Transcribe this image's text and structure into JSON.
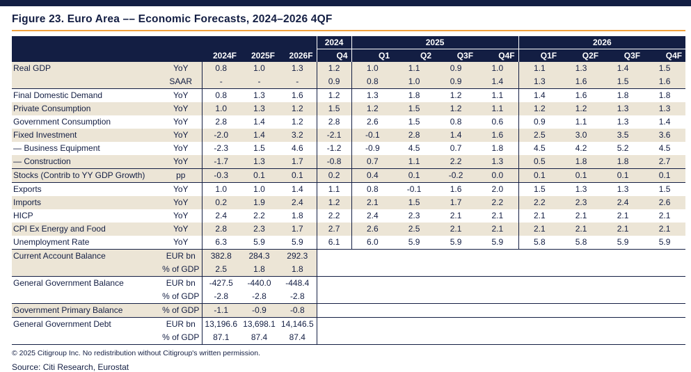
{
  "page": {
    "title": "Figure 23. Euro Area –– Economic Forecasts, 2024–2026 4QF",
    "copyright": "© 2025 Citigroup Inc. No redistribution without Citigroup's written permission.",
    "source": "Source: Citi Research, Eurostat"
  },
  "colors": {
    "navy": "#131e43",
    "beige": "#ece5d6",
    "accent_orange": "#f0a13c"
  },
  "table": {
    "year_groups": [
      {
        "label": "2024",
        "span": 1
      },
      {
        "label": "2025",
        "span": 4
      },
      {
        "label": "2026",
        "span": 4
      }
    ],
    "annual_headers": [
      "2024F",
      "2025F",
      "2026F"
    ],
    "quarter_headers": [
      "Q4",
      "Q1",
      "Q2",
      "Q3F",
      "Q4F",
      "Q1F",
      "Q2F",
      "Q3F",
      "Q4F"
    ],
    "rows": [
      {
        "label": "Real GDP",
        "unit": "YoY",
        "annual": [
          "0.8",
          "1.0",
          "1.3"
        ],
        "quarters": [
          "1.2",
          "1.0",
          "1.1",
          "0.9",
          "1.0",
          "1.1",
          "1.3",
          "1.4",
          "1.5"
        ],
        "shade": "beige",
        "rule": false
      },
      {
        "label": "",
        "unit": "SAAR",
        "annual": [
          "-",
          "-",
          "-"
        ],
        "quarters": [
          "0.9",
          "0.8",
          "1.0",
          "0.9",
          "1.4",
          "1.3",
          "1.6",
          "1.5",
          "1.6"
        ],
        "shade": "beige",
        "rule": true
      },
      {
        "label": "Final Domestic Demand",
        "unit": "YoY",
        "annual": [
          "0.8",
          "1.3",
          "1.6"
        ],
        "quarters": [
          "1.2",
          "1.3",
          "1.8",
          "1.2",
          "1.1",
          "1.4",
          "1.6",
          "1.8",
          "1.8"
        ],
        "shade": "white",
        "rule": false
      },
      {
        "label": "Private Consumption",
        "unit": "YoY",
        "annual": [
          "1.0",
          "1.3",
          "1.2"
        ],
        "quarters": [
          "1.5",
          "1.2",
          "1.5",
          "1.2",
          "1.1",
          "1.2",
          "1.2",
          "1.3",
          "1.3"
        ],
        "shade": "beige",
        "rule": false
      },
      {
        "label": "Government Consumption",
        "unit": "YoY",
        "annual": [
          "2.8",
          "1.4",
          "1.2"
        ],
        "quarters": [
          "2.8",
          "2.6",
          "1.5",
          "0.8",
          "0.6",
          "0.9",
          "1.1",
          "1.3",
          "1.4"
        ],
        "shade": "white",
        "rule": false
      },
      {
        "label": "Fixed Investment",
        "unit": "YoY",
        "annual": [
          "-2.0",
          "1.4",
          "3.2"
        ],
        "quarters": [
          "-2.1",
          "-0.1",
          "2.8",
          "1.4",
          "1.6",
          "2.5",
          "3.0",
          "3.5",
          "3.6"
        ],
        "shade": "beige",
        "rule": false
      },
      {
        "label": "— Business Equipment",
        "unit": "YoY",
        "annual": [
          "-2.3",
          "1.5",
          "4.6"
        ],
        "quarters": [
          "-1.2",
          "-0.9",
          "4.5",
          "0.7",
          "1.8",
          "4.5",
          "4.2",
          "5.2",
          "4.5"
        ],
        "shade": "white",
        "rule": false
      },
      {
        "label": "— Construction",
        "unit": "YoY",
        "annual": [
          "-1.7",
          "1.3",
          "1.7"
        ],
        "quarters": [
          "-0.8",
          "0.7",
          "1.1",
          "2.2",
          "1.3",
          "0.5",
          "1.8",
          "1.8",
          "2.7"
        ],
        "shade": "beige",
        "rule": true
      },
      {
        "label": "Stocks (Contrib to YY GDP Growth)",
        "unit": "pp",
        "annual": [
          "-0.3",
          "0.1",
          "0.1"
        ],
        "quarters": [
          "0.2",
          "0.4",
          "0.1",
          "-0.2",
          "0.0",
          "0.1",
          "0.1",
          "0.1",
          "0.1"
        ],
        "shade": "beige",
        "rule": true
      },
      {
        "label": "Exports",
        "unit": "YoY",
        "annual": [
          "1.0",
          "1.0",
          "1.4"
        ],
        "quarters": [
          "1.1",
          "0.8",
          "-0.1",
          "1.6",
          "2.0",
          "1.5",
          "1.3",
          "1.3",
          "1.5"
        ],
        "shade": "white",
        "rule": false
      },
      {
        "label": "Imports",
        "unit": "YoY",
        "annual": [
          "0.2",
          "1.9",
          "2.4"
        ],
        "quarters": [
          "1.2",
          "2.1",
          "1.5",
          "1.7",
          "2.2",
          "2.2",
          "2.3",
          "2.4",
          "2.6"
        ],
        "shade": "beige",
        "rule": false
      },
      {
        "label": "HICP",
        "unit": "YoY",
        "annual": [
          "2.4",
          "2.2",
          "1.8"
        ],
        "quarters": [
          "2.2",
          "2.4",
          "2.3",
          "2.1",
          "2.1",
          "2.1",
          "2.1",
          "2.1",
          "2.1"
        ],
        "shade": "white",
        "rule": false
      },
      {
        "label": "CPI Ex Energy and Food",
        "unit": "YoY",
        "annual": [
          "2.8",
          "2.3",
          "1.7"
        ],
        "quarters": [
          "2.7",
          "2.6",
          "2.5",
          "2.1",
          "2.1",
          "2.1",
          "2.1",
          "2.1",
          "2.1"
        ],
        "shade": "beige",
        "rule": false
      },
      {
        "label": "Unemployment Rate",
        "unit": "YoY",
        "annual": [
          "6.3",
          "5.9",
          "5.9"
        ],
        "quarters": [
          "6.1",
          "6.0",
          "5.9",
          "5.9",
          "5.9",
          "5.8",
          "5.8",
          "5.9",
          "5.9"
        ],
        "shade": "white",
        "rule": true
      },
      {
        "label": "Current Account Balance",
        "unit": "EUR bn",
        "annual": [
          "382.8",
          "284.3",
          "292.3"
        ],
        "quarters": [],
        "shade": "beige",
        "rule": false
      },
      {
        "label": "",
        "unit": "% of GDP",
        "annual": [
          "2.5",
          "1.8",
          "1.8"
        ],
        "quarters": [],
        "shade": "beige",
        "rule": true
      },
      {
        "label": "General Government Balance",
        "unit": "EUR bn",
        "annual": [
          "-427.5",
          "-440.0",
          "-448.4"
        ],
        "quarters": [],
        "shade": "white",
        "rule": false
      },
      {
        "label": "",
        "unit": "% of GDP",
        "annual": [
          "-2.8",
          "-2.8",
          "-2.8"
        ],
        "quarters": [],
        "shade": "white",
        "rule": true
      },
      {
        "label": "Government Primary Balance",
        "unit": "% of GDP",
        "annual": [
          "-1.1",
          "-0.9",
          "-0.8"
        ],
        "quarters": [],
        "shade": "beige",
        "rule": true
      },
      {
        "label": "General Government Debt",
        "unit": "EUR bn",
        "annual": [
          "13,196.6",
          "13,698.1",
          "14,146.5"
        ],
        "quarters": [],
        "shade": "white",
        "rule": false
      },
      {
        "label": "",
        "unit": "% of GDP",
        "annual": [
          "87.1",
          "87.4",
          "87.4"
        ],
        "quarters": [],
        "shade": "white",
        "rule": false
      }
    ]
  }
}
